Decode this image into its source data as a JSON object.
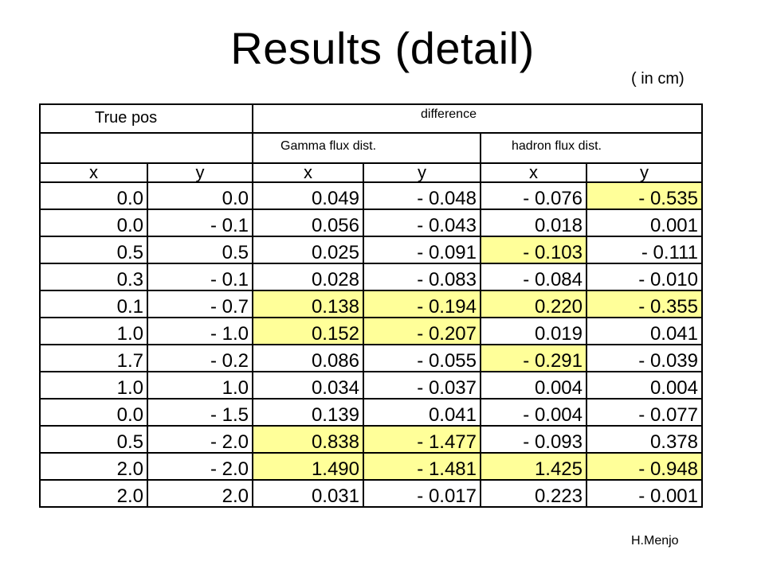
{
  "slide": {
    "title": "Results (detail)",
    "units": "( in cm)",
    "author": "H.Menjo"
  },
  "table": {
    "header_true": "True pos",
    "header_diff": "difference",
    "header_gamma": "Gamma flux dist.",
    "header_hadron": "hadron flux dist.",
    "col_labels": [
      "x",
      "y",
      "x",
      "y",
      "x",
      "y"
    ],
    "highlight_color": "#ffff99",
    "rows": [
      {
        "cells": [
          "0.0",
          "0.0",
          "0.049",
          "- 0.048",
          "- 0.076",
          "- 0.535"
        ],
        "highlight": [
          false,
          false,
          false,
          false,
          false,
          true
        ]
      },
      {
        "cells": [
          "0.0",
          "- 0.1",
          "0.056",
          "- 0.043",
          "0.018",
          "0.001"
        ],
        "highlight": [
          false,
          false,
          false,
          false,
          false,
          false
        ]
      },
      {
        "cells": [
          "0.5",
          "0.5",
          "0.025",
          "- 0.091",
          "- 0.103",
          "- 0.111"
        ],
        "highlight": [
          false,
          false,
          false,
          false,
          true,
          false
        ]
      },
      {
        "cells": [
          "0.3",
          "- 0.1",
          "0.028",
          "- 0.083",
          "- 0.084",
          "- 0.010"
        ],
        "highlight": [
          false,
          false,
          false,
          false,
          false,
          false
        ]
      },
      {
        "cells": [
          "0.1",
          "- 0.7",
          "0.138",
          "- 0.194",
          "0.220",
          "- 0.355"
        ],
        "highlight": [
          false,
          false,
          true,
          true,
          true,
          true
        ]
      },
      {
        "cells": [
          "1.0",
          "- 1.0",
          "0.152",
          "- 0.207",
          "0.019",
          "0.041"
        ],
        "highlight": [
          false,
          false,
          true,
          true,
          false,
          false
        ]
      },
      {
        "cells": [
          "1.7",
          "- 0.2",
          "0.086",
          "- 0.055",
          "- 0.291",
          "- 0.039"
        ],
        "highlight": [
          false,
          false,
          false,
          false,
          true,
          false
        ]
      },
      {
        "cells": [
          "1.0",
          "1.0",
          "0.034",
          "- 0.037",
          "0.004",
          "0.004"
        ],
        "highlight": [
          false,
          false,
          false,
          false,
          false,
          false
        ]
      },
      {
        "cells": [
          "0.0",
          "- 1.5",
          "0.139",
          "0.041",
          "- 0.004",
          "- 0.077"
        ],
        "highlight": [
          false,
          false,
          false,
          false,
          false,
          false
        ]
      },
      {
        "cells": [
          "0.5",
          "- 2.0",
          "0.838",
          "- 1.477",
          "- 0.093",
          "0.378"
        ],
        "highlight": [
          false,
          false,
          true,
          true,
          false,
          false
        ]
      },
      {
        "cells": [
          "2.0",
          "- 2.0",
          "1.490",
          "- 1.481",
          "1.425",
          "- 0.948"
        ],
        "highlight": [
          false,
          false,
          true,
          true,
          true,
          true
        ]
      },
      {
        "cells": [
          "2.0",
          "2.0",
          "0.031",
          "- 0.017",
          "0.223",
          "- 0.001"
        ],
        "highlight": [
          false,
          false,
          false,
          false,
          false,
          false
        ]
      }
    ]
  }
}
